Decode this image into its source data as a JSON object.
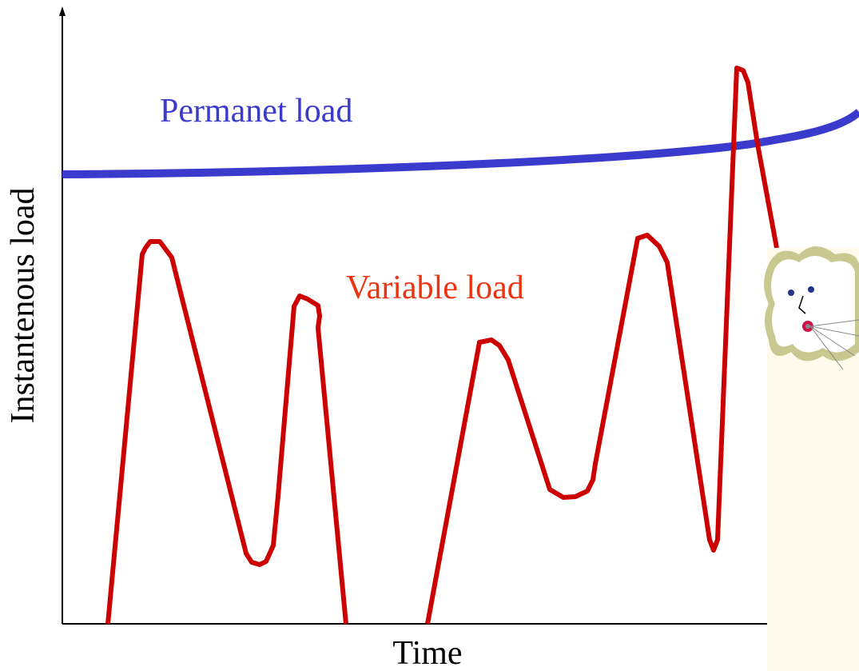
{
  "axes": {
    "y_label": "Instantenous load",
    "x_label": "Time"
  },
  "labels": {
    "permanent": "Permanet load",
    "variable": "Variable load"
  }
}
